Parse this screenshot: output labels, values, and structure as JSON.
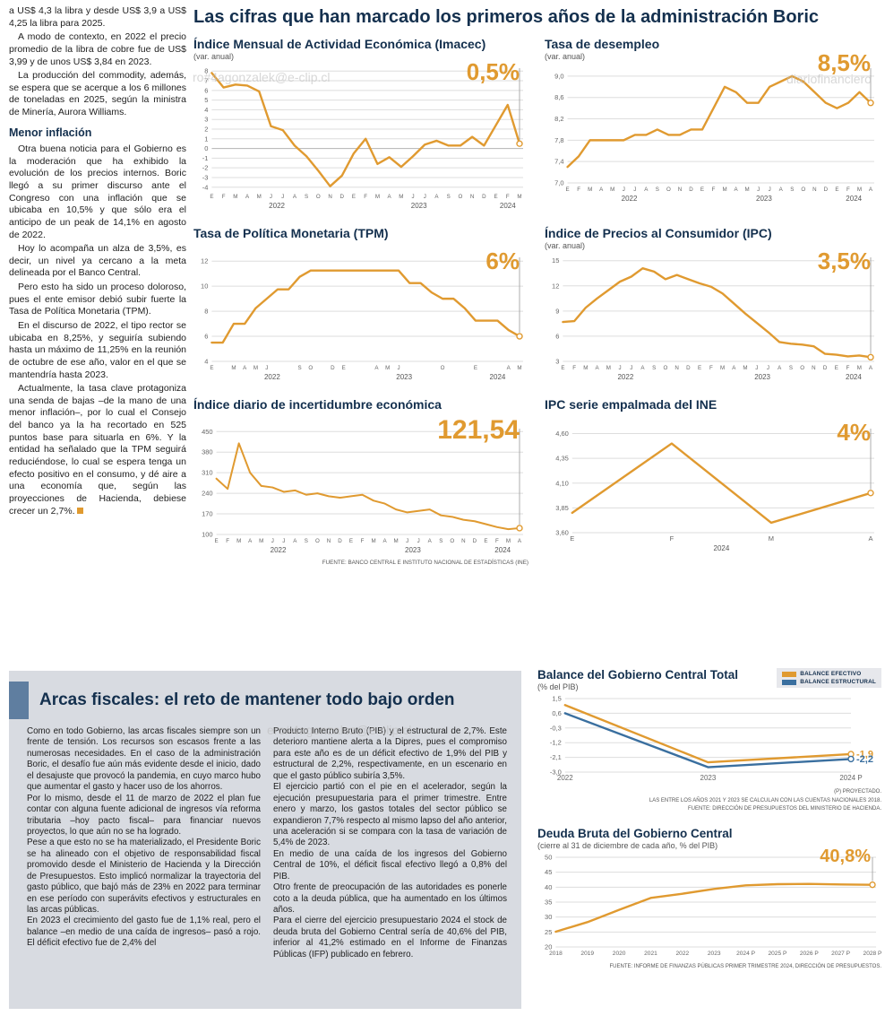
{
  "main_title": "Las cifras que han marcado los primeros años de la administración Boric",
  "watermarks": [
    "ro#4agonzalek@e-clip.cl",
    "diariofinanciero",
    "ero#4agonzalez@e-clip.cl"
  ],
  "article": {
    "subhead": "Menor inflación",
    "paragraphs": [
      "a US$ 4,3 la libra y desde US$ 3,9 a US$ 4,25 la libra para 2025.",
      "A modo de contexto, en 2022 el precio promedio de la libra de cobre fue de US$ 3,99 y de unos US$ 3,84 en 2023.",
      "La producción del commodity, además, se espera que se acerque a los 6 millones de toneladas en 2025, según la ministra de Minería, Aurora Williams.",
      "Otra buena noticia para el Gobierno es la moderación que ha exhibido la evolución de los precios internos. Boric llegó a su primer discurso ante el Congreso con una inflación que se ubicaba en 10,5% y que sólo era el anticipo de un peak de 14,1% en agosto de 2022.",
      "Hoy lo acompaña un alza de 3,5%, es decir, un nivel ya cercano a la meta delineada por el Banco Central.",
      "Pero esto ha sido un proceso doloroso, pues el ente emisor debió subir fuerte la Tasa de Política Monetaria (TPM).",
      "En el discurso de 2022, el tipo rector se ubicaba en 8,25%, y seguiría subiendo hasta un máximo de 11,25% en la reunión de octubre de ese año, valor en el que se mantendría hasta 2023.",
      "Actualmente, la tasa clave protagoniza una senda de bajas –de la mano de una menor inflación–, por lo cual el Consejo del banco ya la ha recortado en 525 puntos base para situarla en 6%. Y la entidad ha señalado que la TPM seguirá reduciéndose, lo cual se espera tenga un efecto positivo en el consumo, y dé aire a una economía que, según las proyecciones de Hacienda, debiese crecer un 2,7%."
    ]
  },
  "fiscal": {
    "title": "Arcas fiscales: el reto de mantener todo bajo orden",
    "col1": [
      "Como en todo Gobierno, las arcas fiscales siempre son un frente de tensión. Los recursos son escasos frente a las numerosas necesidades. En el caso de la administración Boric, el desafío fue aún más evidente desde el inicio, dado el desajuste que provocó la pandemia, en cuyo marco hubo que aumentar el gasto y hacer uso de los ahorros.",
      "Por lo mismo, desde el 11 de marzo de 2022 el plan fue contar con alguna fuente adicional de ingresos vía reforma tributaria –hoy pacto fiscal– para financiar nuevos proyectos, lo que aún no se ha logrado.",
      "Pese a que esto no se ha materializado, el Presidente Boric se ha alineado con el objetivo de responsabilidad fiscal promovido desde el Ministerio de Hacienda y la Dirección de Presupuestos. Esto implicó normalizar la trayectoria del gasto público, que bajó más de 23% en 2022 para terminar en ese período con superávits efectivos y estructurales en las arcas públicas.",
      "En 2023 el crecimiento del gasto fue de 1,1% real, pero el balance –en medio de una caída de ingresos– pasó a rojo. El déficit efectivo fue de 2,4% del"
    ],
    "col2": [
      "Producto Interno Bruto (PIB) y el estructural de 2,7%. Este deterioro mantiene alerta a la Dipres, pues el compromiso para este año es de un déficit efectivo de 1,9% del PIB y estructural de 2,2%, respectivamente, en un escenario en que el gasto público subiría 3,5%.",
      "El ejercicio partió con el pie en el acelerador, según la ejecución presupuestaria para el primer trimestre. Entre enero y marzo, los gastos totales del sector público se expandieron 7,7% respecto al mismo lapso del año anterior, una aceleración si se compara con la tasa de variación de 5,4% de 2023.",
      "En medio de una caída de los ingresos del Gobierno Central de 10%, el déficit fiscal efectivo llegó a 0,8% del PIB.",
      "Otro frente de preocupación de las autoridades es ponerle coto a la deuda pública, que ha aumentado en los últimos años.",
      "Para el cierre del ejercicio presupuestario 2024 el stock de deuda bruta del Gobierno Central sería de 40,6% del PIB, inferior al 41,2% estimado en el Informe de Finanzas Públicas (IFP) publicado en febrero."
    ]
  },
  "chart_data": [
    {
      "type": "line",
      "title": "Índice Mensual de Actividad Económica (Imacec)",
      "subtitle": "(var. anual)",
      "big_value": "0,5%",
      "y_ticks": [
        8,
        7,
        6,
        5,
        4,
        3,
        2,
        1,
        0,
        -1,
        -2,
        -3,
        -4
      ],
      "y_decimals": 0,
      "ylim": [
        -4.3,
        8.3
      ],
      "zero": true,
      "guide": true,
      "x_labels": [
        "E",
        "F",
        "M",
        "A",
        "M",
        "J",
        "J",
        "A",
        "S",
        "O",
        "N",
        "D",
        "E",
        "F",
        "M",
        "A",
        "M",
        "J",
        "J",
        "A",
        "S",
        "O",
        "N",
        "D",
        "E",
        "F",
        "M"
      ],
      "years": [
        {
          "label": "2022",
          "from": 0,
          "to": 11
        },
        {
          "label": "2023",
          "from": 12,
          "to": 23
        },
        {
          "label": "2024",
          "from": 24,
          "to": 26
        }
      ],
      "series": [
        {
          "color": "#e09a30",
          "values": [
            7.8,
            6.3,
            6.6,
            6.5,
            5.9,
            2.3,
            1.9,
            0.3,
            -0.8,
            -2.3,
            -3.9,
            -2.8,
            -0.5,
            1.0,
            -1.6,
            -0.9,
            -1.9,
            -0.8,
            0.4,
            0.8,
            0.3,
            0.3,
            1.2,
            0.3,
            2.4,
            4.5,
            0.5
          ]
        }
      ]
    },
    {
      "type": "line",
      "title": "Tasa de desempleo",
      "subtitle": "(var. anual)",
      "big_value": "8,5%",
      "y_ticks": [
        9.0,
        8.6,
        8.2,
        7.8,
        7.4,
        7.0
      ],
      "y_decimals": 1,
      "ylim": [
        7.0,
        9.15
      ],
      "guide": true,
      "x_labels": [
        "E",
        "F",
        "M",
        "A",
        "M",
        "J",
        "J",
        "A",
        "S",
        "O",
        "N",
        "D",
        "E",
        "F",
        "M",
        "A",
        "M",
        "J",
        "J",
        "A",
        "S",
        "O",
        "N",
        "D",
        "E",
        "F",
        "M",
        "A"
      ],
      "years": [
        {
          "label": "2022",
          "from": 0,
          "to": 11
        },
        {
          "label": "2023",
          "from": 12,
          "to": 23
        },
        {
          "label": "2024",
          "from": 24,
          "to": 27
        }
      ],
      "series": [
        {
          "color": "#e09a30",
          "values": [
            7.3,
            7.5,
            7.8,
            7.8,
            7.8,
            7.8,
            7.9,
            7.9,
            8.0,
            7.9,
            7.9,
            8.0,
            8.0,
            8.4,
            8.8,
            8.7,
            8.5,
            8.5,
            8.8,
            8.9,
            9.0,
            8.9,
            8.7,
            8.5,
            8.4,
            8.5,
            8.7,
            8.5
          ]
        }
      ]
    },
    {
      "type": "line",
      "title": "Tasa de Política Monetaria (TPM)",
      "subtitle": "",
      "big_value": "6%",
      "y_ticks": [
        12,
        10,
        8,
        6,
        4
      ],
      "y_decimals": 0,
      "ylim": [
        4,
        12.3
      ],
      "guide": true,
      "x_labels": [
        "E",
        "",
        "M",
        "A",
        "M",
        "J",
        "",
        "",
        "S",
        "O",
        "",
        "D",
        "E",
        "",
        "",
        "A",
        "M",
        "J",
        "",
        "",
        "",
        "O",
        "",
        "",
        "E",
        "",
        "",
        "A",
        "M"
      ],
      "years": [
        {
          "label": "2022",
          "from": 0,
          "to": 11
        },
        {
          "label": "2023",
          "from": 12,
          "to": 23
        },
        {
          "label": "2024",
          "from": 24,
          "to": 28
        }
      ],
      "series": [
        {
          "color": "#e09a30",
          "values": [
            5.5,
            5.5,
            7.0,
            7.0,
            8.25,
            9.0,
            9.75,
            9.75,
            10.75,
            11.25,
            11.25,
            11.25,
            11.25,
            11.25,
            11.25,
            11.25,
            11.25,
            11.25,
            10.25,
            10.25,
            9.5,
            9.0,
            9.0,
            8.25,
            7.25,
            7.25,
            7.25,
            6.5,
            6.0
          ]
        }
      ]
    },
    {
      "type": "line",
      "title": "Índice de Precios al Consumidor (IPC)",
      "subtitle": "(var. anual)",
      "big_value": "3,5%",
      "y_ticks": [
        15,
        12,
        9,
        6,
        3
      ],
      "y_decimals": 0,
      "ylim": [
        3,
        15.4
      ],
      "guide": true,
      "x_labels": [
        "E",
        "F",
        "M",
        "A",
        "M",
        "J",
        "J",
        "A",
        "S",
        "O",
        "N",
        "D",
        "E",
        "F",
        "M",
        "A",
        "M",
        "J",
        "J",
        "A",
        "S",
        "O",
        "N",
        "D",
        "E",
        "F",
        "M",
        "A"
      ],
      "years": [
        {
          "label": "2022",
          "from": 0,
          "to": 11
        },
        {
          "label": "2023",
          "from": 12,
          "to": 23
        },
        {
          "label": "2024",
          "from": 24,
          "to": 27
        }
      ],
      "series": [
        {
          "color": "#e09a30",
          "values": [
            7.7,
            7.8,
            9.4,
            10.5,
            11.5,
            12.5,
            13.1,
            14.1,
            13.7,
            12.8,
            13.3,
            12.8,
            12.3,
            11.9,
            11.1,
            9.9,
            8.7,
            7.6,
            6.5,
            5.3,
            5.1,
            5.0,
            4.8,
            3.9,
            3.8,
            3.6,
            3.7,
            3.5
          ]
        }
      ]
    },
    {
      "type": "line",
      "title": "Índice diario de incertidumbre económica",
      "subtitle": "",
      "big_value": "121,54",
      "source": "FUENTE: BANCO CENTRAL E INSTITUTO NACIONAL DE ESTADÍSTICAS (INE)",
      "y_ticks": [
        450,
        380,
        310,
        240,
        170,
        100
      ],
      "y_decimals": 0,
      "ylim": [
        100,
        460
      ],
      "guide": true,
      "x_labels": [
        "E",
        "F",
        "M",
        "A",
        "M",
        "J",
        "J",
        "A",
        "S",
        "O",
        "N",
        "D",
        "E",
        "F",
        "M",
        "A",
        "M",
        "J",
        "J",
        "A",
        "S",
        "O",
        "N",
        "D",
        "E",
        "F",
        "M",
        "A"
      ],
      "years": [
        {
          "label": "2022",
          "from": 0,
          "to": 11
        },
        {
          "label": "2023",
          "from": 12,
          "to": 23
        },
        {
          "label": "2024",
          "from": 24,
          "to": 27
        }
      ],
      "series": [
        {
          "color": "#e09a30",
          "width": 2,
          "values": [
            290,
            255,
            410,
            310,
            265,
            260,
            245,
            250,
            235,
            240,
            230,
            225,
            230,
            235,
            215,
            205,
            185,
            175,
            180,
            185,
            165,
            160,
            150,
            145,
            135,
            125,
            118,
            121.54
          ]
        }
      ]
    },
    {
      "type": "line",
      "title": "IPC serie empalmada del INE",
      "subtitle": "",
      "big_value": "4%",
      "y_ticks": [
        4.6,
        4.35,
        4.1,
        3.85,
        3.6
      ],
      "y_decimals": 2,
      "ylim": [
        3.6,
        4.65
      ],
      "guide": true,
      "x_labels": [
        "E",
        "F",
        "M",
        "A"
      ],
      "x_font": 7.5,
      "years": [
        {
          "label": "2024",
          "from": 0,
          "to": 3
        }
      ],
      "series": [
        {
          "color": "#e09a30",
          "values": [
            3.8,
            4.5,
            3.7,
            4.0
          ]
        }
      ]
    },
    {
      "type": "line",
      "title": "Balance del Gobierno Central Total",
      "subtitle": "(% del PIB)",
      "y_ticks": [
        1.5,
        0.6,
        -0.3,
        -1.2,
        -2.1,
        -3.0
      ],
      "y_decimals": 1,
      "ylim": [
        -3.0,
        1.5
      ],
      "guide": false,
      "x_labels": [
        "2022",
        "2023",
        "2024 P"
      ],
      "x_font": 8,
      "series": [
        {
          "name": "BALANCE EFECTIVO",
          "color": "#e09a30",
          "values": [
            1.1,
            -2.4,
            -1.9
          ],
          "end_label": "-1,9"
        },
        {
          "name": "BALANCE ESTRUCTURAL",
          "color": "#3a6f9f",
          "values": [
            0.6,
            -2.7,
            -2.2
          ],
          "end_label": "-2,2"
        }
      ],
      "footnotes": [
        "(P) PROYECTADO.",
        "LAS ENTRE LOS AÑOS 2021 Y 2023 SE CALCULAN CON LAS CUENTAS NACIONALES 2018.",
        "FUENTE: DIRECCIÓN DE PRESUPUESTOS DEL MINISTERIO DE HACIENDA."
      ]
    },
    {
      "type": "line",
      "title": "Deuda Bruta del Gobierno Central",
      "subtitle": "(cierre al 31 de diciembre de cada año, % del PIB)",
      "big_value": "40,8%",
      "y_ticks": [
        50,
        45,
        40,
        35,
        30,
        25,
        20
      ],
      "y_decimals": 0,
      "ylim": [
        20,
        50
      ],
      "guide": true,
      "x_labels": [
        "2018",
        "2019",
        "2020",
        "2021",
        "2022",
        "2023",
        "2024 P",
        "2025 P",
        "2026 P",
        "2027 P",
        "2028 P"
      ],
      "x_font": 6.6,
      "series": [
        {
          "color": "#e09a30",
          "values": [
            25.1,
            28.3,
            32.4,
            36.4,
            37.8,
            39.4,
            40.6,
            41.0,
            41.1,
            40.9,
            40.8
          ]
        }
      ],
      "footnotes": [
        "FUENTE: INFORME DE FINANZAS PÚBLICAS PRIMER TRIMESTRE 2024, DIRECCIÓN DE PRESUPUESTOS."
      ]
    }
  ]
}
